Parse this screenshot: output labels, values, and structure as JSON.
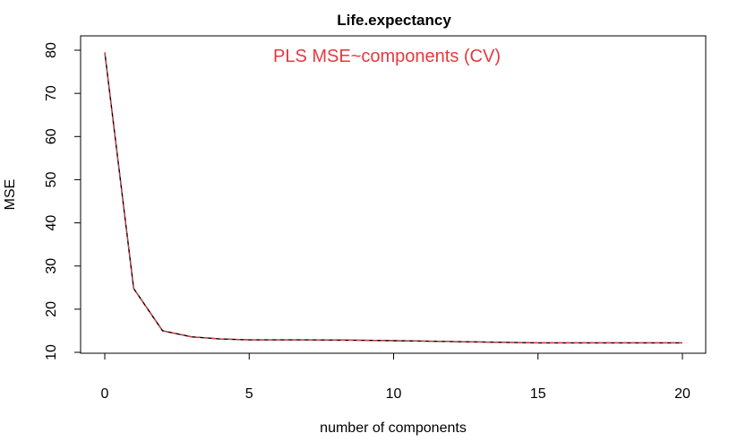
{
  "chart_data": {
    "type": "line",
    "title": "Life.expectancy",
    "annotation": "PLS MSE~components (CV)",
    "xlabel": "number of components",
    "ylabel": "MSE",
    "xlim": [
      0,
      20
    ],
    "ylim": [
      10,
      80
    ],
    "x_ticks": [
      0,
      5,
      10,
      15,
      20
    ],
    "y_ticks": [
      10,
      20,
      30,
      40,
      50,
      60,
      70,
      80
    ],
    "grid": false,
    "series": [
      {
        "style": "solid",
        "color": "#000000",
        "x": [
          0,
          1,
          2,
          3,
          4,
          5,
          6,
          7,
          8,
          9,
          10,
          11,
          12,
          13,
          14,
          15,
          16,
          17,
          18,
          19,
          20
        ],
        "y": [
          79.5,
          24.8,
          15.0,
          13.6,
          13.1,
          12.9,
          12.9,
          12.9,
          12.85,
          12.8,
          12.7,
          12.6,
          12.5,
          12.4,
          12.3,
          12.2,
          12.2,
          12.2,
          12.2,
          12.2,
          12.2
        ]
      },
      {
        "style": "dashed",
        "color": "#e8383d",
        "x": [
          0,
          1,
          2,
          3,
          4,
          5,
          6,
          7,
          8,
          9,
          10,
          11,
          12,
          13,
          14,
          15,
          16,
          17,
          18,
          19,
          20
        ],
        "y": [
          79.5,
          24.8,
          15.0,
          13.6,
          13.1,
          12.9,
          12.9,
          12.9,
          12.85,
          12.8,
          12.7,
          12.6,
          12.5,
          12.4,
          12.3,
          12.2,
          12.2,
          12.2,
          12.2,
          12.2,
          12.2
        ]
      }
    ]
  }
}
